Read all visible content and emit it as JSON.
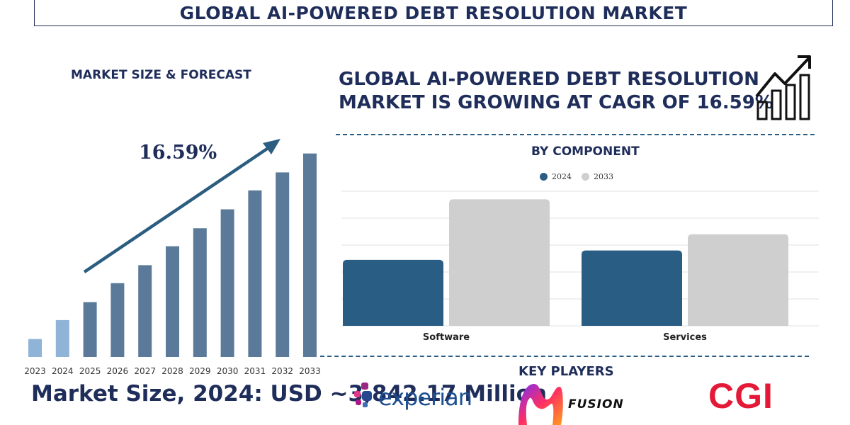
{
  "title": "GLOBAL AI-POWERED DEBT RESOLUTION MARKET",
  "left_panel": {
    "subtitle": "MARKET SIZE & FORECAST",
    "cagr_label": "16.59%",
    "market_size_text": "Market Size, 2024: USD ~3,842.17 Million"
  },
  "headline": {
    "line1": "GLOBAL AI-POWERED DEBT RESOLUTION",
    "line2": "MARKET IS GROWING AT CAGR OF 16.59%"
  },
  "component_section": {
    "title": "BY COMPONENT",
    "legend": [
      "2024",
      "2033"
    ]
  },
  "key_players": {
    "title": "KEY PLAYERS",
    "logos": [
      "experian",
      "FUSION",
      "CGI"
    ]
  },
  "colors": {
    "navy": "#1f2d5a",
    "bar_light": "#8fb4d8",
    "bar_mid": "#5b7a99",
    "series_2024": "#2a5d84",
    "series_2033": "#cfcfcf",
    "cgi_red": "#e31937"
  },
  "chart_data": [
    {
      "type": "bar",
      "title": "",
      "categories": [
        "2023",
        "2024",
        "2025",
        "2026",
        "2027",
        "2028",
        "2029",
        "2030",
        "2031",
        "2032",
        "2033"
      ],
      "values": [
        9.5,
        19.5,
        29,
        39,
        48.5,
        58.5,
        68,
        78,
        88,
        97.5,
        107.5
      ],
      "highlighted": [
        "2023",
        "2024"
      ],
      "ylim": [
        0,
        110
      ],
      "annotation": "16.59%"
    },
    {
      "type": "bar",
      "title": "BY COMPONENT",
      "categories": [
        "Software",
        "Services"
      ],
      "series": [
        {
          "name": "2024",
          "values": [
            98,
            112
          ]
        },
        {
          "name": "2033",
          "values": [
            188,
            136
          ]
        }
      ],
      "ylim": [
        0,
        200
      ],
      "grid": true,
      "legend": "top"
    }
  ]
}
